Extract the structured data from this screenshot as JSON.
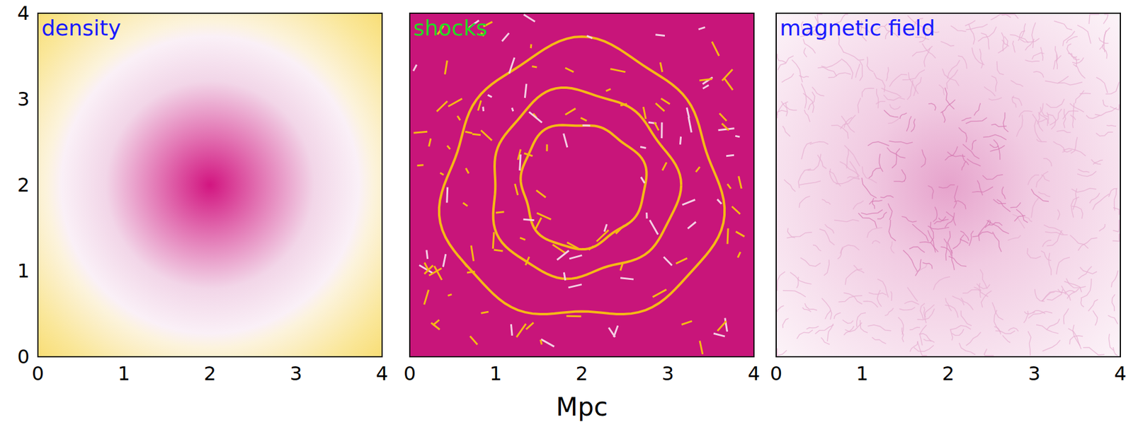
{
  "chart_data": [
    {
      "type": "image",
      "title": "density",
      "xlim": [
        0,
        4
      ],
      "ylim": [
        0,
        4
      ],
      "xticks": [
        0,
        1,
        2,
        3,
        4
      ],
      "yticks": [
        0,
        1,
        2,
        3,
        4
      ],
      "tick_labels": true
    },
    {
      "type": "image",
      "title": "shocks",
      "xlabel": "Mpc",
      "xlim": [
        0,
        4
      ],
      "ylim": [
        0,
        4
      ],
      "xticks": [
        0,
        1,
        2,
        3,
        4
      ],
      "yticks": [
        0,
        1,
        2,
        3,
        4
      ],
      "tick_labels": "x"
    },
    {
      "type": "image",
      "title": "magnetic field",
      "xlim": [
        0,
        4
      ],
      "ylim": [
        0,
        4
      ],
      "xticks": [
        0,
        1,
        2,
        3,
        4
      ],
      "yticks": [
        0,
        1,
        2,
        3,
        4
      ],
      "tick_labels": "x"
    }
  ]
}
